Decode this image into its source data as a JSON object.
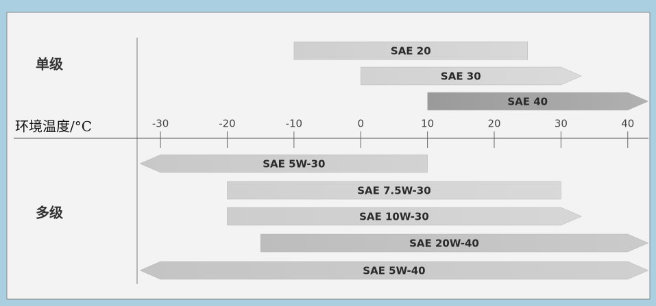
{
  "chart_data": {
    "type": "range_bar",
    "xlabel": "环境温度/°C",
    "xlim": [
      -33.5,
      43
    ],
    "xticks": [
      -30,
      -20,
      -10,
      0,
      10,
      20,
      30,
      40
    ],
    "groups": [
      {
        "name": "单级",
        "bars": [
          {
            "name": "SAE 20",
            "low": -10,
            "high": 25,
            "arrow": "none",
            "color": "#cfcfcf"
          },
          {
            "name": "SAE 30",
            "low": 0,
            "high": 30,
            "arrow": "right",
            "color": "#d2d2d2"
          },
          {
            "name": "SAE 40",
            "low": 10,
            "high": 40,
            "arrow": "right",
            "color": "#9a9a9a"
          }
        ]
      },
      {
        "name": "多级",
        "bars": [
          {
            "name": "SAE 5W-30",
            "low": -30,
            "high": 10,
            "arrow": "left",
            "color": "#c8c8c8"
          },
          {
            "name": "SAE 7.5W-30",
            "low": -20,
            "high": 30,
            "arrow": "none",
            "color": "#d0d0d0"
          },
          {
            "name": "SAE 10W-30",
            "low": -20,
            "high": 30,
            "arrow": "right",
            "color": "#cdcdcd"
          },
          {
            "name": "SAE 20W-40",
            "low": -15,
            "high": 40,
            "arrow": "right",
            "color": "#bdbdbd"
          },
          {
            "name": "SAE 5W-40",
            "low": -30,
            "high": 40,
            "arrow": "both",
            "color": "#c4c4c4"
          }
        ]
      }
    ]
  }
}
